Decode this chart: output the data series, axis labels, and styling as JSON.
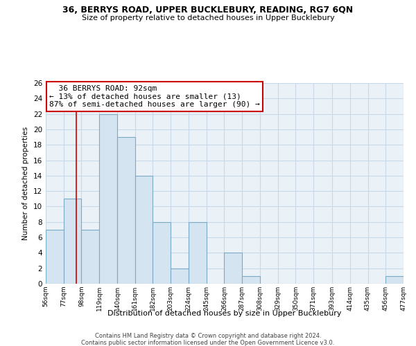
{
  "title1": "36, BERRYS ROAD, UPPER BUCKLEBURY, READING, RG7 6QN",
  "title2": "Size of property relative to detached houses in Upper Bucklebury",
  "xlabel": "Distribution of detached houses by size in Upper Bucklebury",
  "ylabel": "Number of detached properties",
  "bar_edges": [
    56,
    77,
    98,
    119,
    140,
    161,
    182,
    203,
    224,
    245,
    266,
    287,
    308,
    329,
    350,
    371,
    393,
    414,
    435,
    456,
    477
  ],
  "bar_heights": [
    7,
    11,
    7,
    22,
    19,
    14,
    8,
    2,
    8,
    0,
    4,
    1,
    0,
    0,
    0,
    0,
    0,
    0,
    0,
    1
  ],
  "bar_fill_color": "#d4e4f0",
  "bar_edge_color": "#7aaac8",
  "plot_bg_color": "#eaf2f8",
  "reference_line_x": 92,
  "reference_line_color": "#cc0000",
  "ylim": [
    0,
    26
  ],
  "yticks": [
    0,
    2,
    4,
    6,
    8,
    10,
    12,
    14,
    16,
    18,
    20,
    22,
    24,
    26
  ],
  "annotation_title": "36 BERRYS ROAD: 92sqm",
  "annotation_line1": "← 13% of detached houses are smaller (13)",
  "annotation_line2": "87% of semi-detached houses are larger (90) →",
  "annotation_box_color": "#ffffff",
  "annotation_box_edge": "#cc0000",
  "tick_labels": [
    "56sqm",
    "77sqm",
    "98sqm",
    "119sqm",
    "140sqm",
    "161sqm",
    "182sqm",
    "203sqm",
    "224sqm",
    "245sqm",
    "266sqm",
    "287sqm",
    "308sqm",
    "329sqm",
    "350sqm",
    "371sqm",
    "393sqm",
    "414sqm",
    "435sqm",
    "456sqm",
    "477sqm"
  ],
  "footnote1": "Contains HM Land Registry data © Crown copyright and database right 2024.",
  "footnote2": "Contains public sector information licensed under the Open Government Licence v3.0.",
  "background_color": "#ffffff",
  "grid_color": "#c8d8e8"
}
